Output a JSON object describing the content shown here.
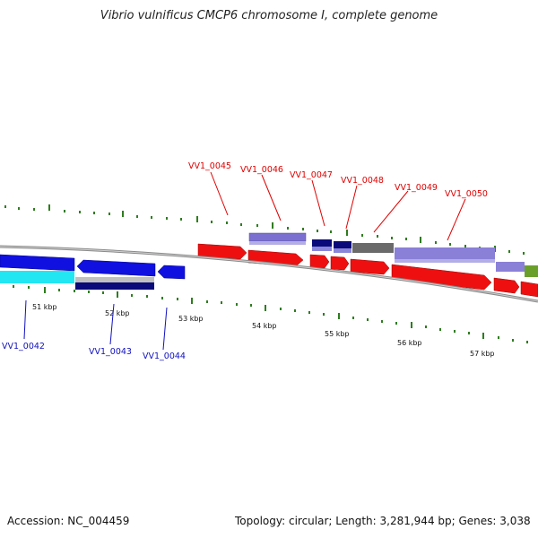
{
  "title": "Vibrio vulnificus CMCP6 chromosome I, complete genome",
  "footer": {
    "accession": "Accession: NC_004459",
    "summary": "Topology: circular; Length: 3,281,944 bp; Genes: 3,038"
  },
  "colors": {
    "backbone": "#8a8a8a",
    "tick": "#2e7d1f",
    "forward_label": "#e00000",
    "reverse_label": "#1010c0"
  },
  "kbp_labels": [
    "51 kbp",
    "52 kbp",
    "53 kbp",
    "54 kbp",
    "55 kbp",
    "56 kbp",
    "57 kbp"
  ],
  "gene_labels_top": [
    "VV1_0045",
    "VV1_0046",
    "VV1_0047",
    "VV1_0048",
    "VV1_0049",
    "VV1_0050"
  ],
  "gene_labels_bottom": [
    "VV1_0042",
    "VV1_0043",
    "VV1_0044"
  ]
}
